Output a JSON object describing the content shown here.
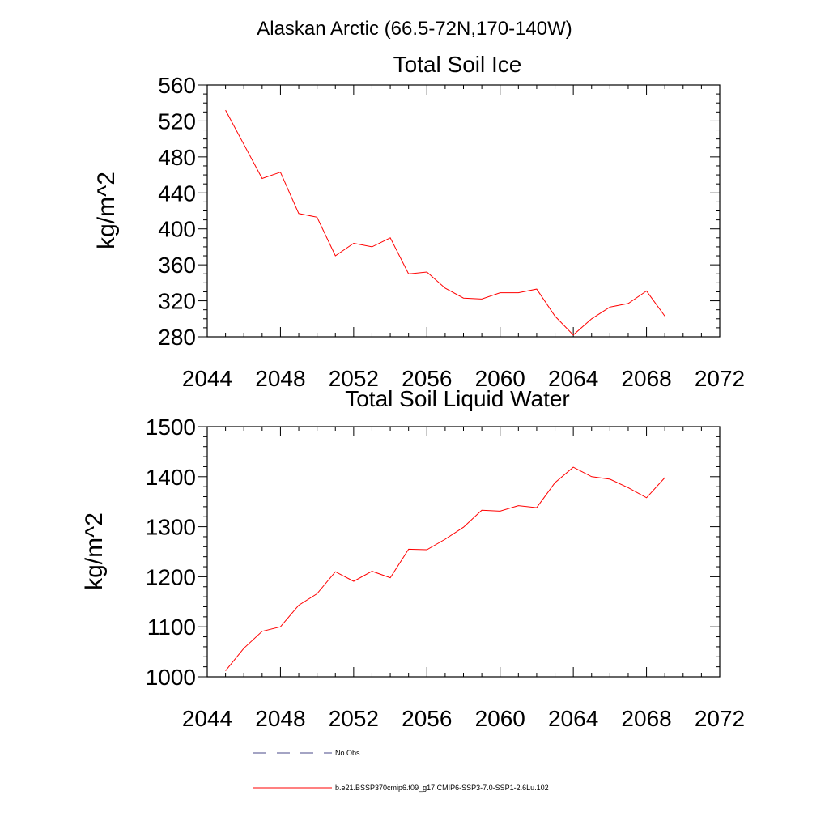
{
  "figure": {
    "title": "Alaskan Arctic (66.5-72N,170-140W)"
  },
  "chart_data": [
    {
      "type": "line",
      "title": "Total Soil Ice",
      "xlabel": "",
      "ylabel": "kg/m^2",
      "xlim": [
        2044,
        2072
      ],
      "ylim": [
        280,
        560
      ],
      "xticks": [
        2044,
        2048,
        2052,
        2056,
        2060,
        2064,
        2068,
        2072
      ],
      "yticks": [
        280,
        320,
        360,
        400,
        440,
        480,
        520,
        560
      ],
      "x": [
        2045,
        2046,
        2047,
        2048,
        2049,
        2050,
        2051,
        2052,
        2053,
        2054,
        2055,
        2056,
        2057,
        2058,
        2059,
        2060,
        2061,
        2062,
        2063,
        2064,
        2065,
        2066,
        2067,
        2068,
        2069
      ],
      "series": [
        {
          "values": [
            532,
            494,
            456,
            463,
            417,
            413,
            370,
            384,
            380,
            390,
            350,
            352,
            334,
            323,
            322,
            329,
            329,
            333,
            303,
            282,
            300,
            313,
            317,
            331,
            303
          ],
          "color": "#ff0000"
        }
      ],
      "grid": false
    },
    {
      "type": "line",
      "title": "Total Soil Liquid Water",
      "xlabel": "",
      "ylabel": "kg/m^2",
      "xlim": [
        2044,
        2072
      ],
      "ylim": [
        1000,
        1500
      ],
      "xticks": [
        2044,
        2048,
        2052,
        2056,
        2060,
        2064,
        2068,
        2072
      ],
      "yticks": [
        1000,
        1100,
        1200,
        1300,
        1400,
        1500
      ],
      "x": [
        2045,
        2046,
        2047,
        2048,
        2049,
        2050,
        2051,
        2052,
        2053,
        2054,
        2055,
        2056,
        2057,
        2058,
        2059,
        2060,
        2061,
        2062,
        2063,
        2064,
        2065,
        2066,
        2067,
        2068,
        2069
      ],
      "series": [
        {
          "values": [
            1012,
            1057,
            1091,
            1100,
            1143,
            1166,
            1210,
            1191,
            1211,
            1198,
            1255,
            1254,
            1275,
            1299,
            1333,
            1331,
            1342,
            1338,
            1388,
            1419,
            1400,
            1395,
            1378,
            1358,
            1398
          ],
          "color": "#ff0000"
        }
      ],
      "grid": false
    }
  ],
  "legend": {
    "placement": "bottom",
    "entries": [
      {
        "label": "No Obs",
        "style": "dashed",
        "color": "#4a4a8a"
      },
      {
        "label": "b.e21.BSSP370cmip6.f09_g17.CMIP6-SSP3-7.0-SSP1-2.6Lu.102",
        "style": "solid",
        "color": "#ff0000"
      }
    ]
  }
}
